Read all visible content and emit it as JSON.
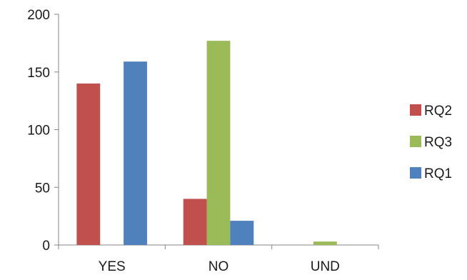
{
  "chart_data": {
    "type": "bar",
    "title": "",
    "xlabel": "",
    "ylabel": "",
    "categories": [
      "YES",
      "NO",
      "UND"
    ],
    "ylim": [
      0,
      200
    ],
    "yticks": [
      0,
      50,
      100,
      150,
      200
    ],
    "grid": false,
    "legend_position": "right",
    "series": [
      {
        "name": "RQ2",
        "color": "#C0504D",
        "values": [
          140,
          40,
          0
        ]
      },
      {
        "name": "RQ3",
        "color": "#9BBB59",
        "values": [
          0,
          177,
          3
        ]
      },
      {
        "name": "RQ1",
        "color": "#4F81BD",
        "values": [
          159,
          21,
          0
        ]
      }
    ]
  }
}
